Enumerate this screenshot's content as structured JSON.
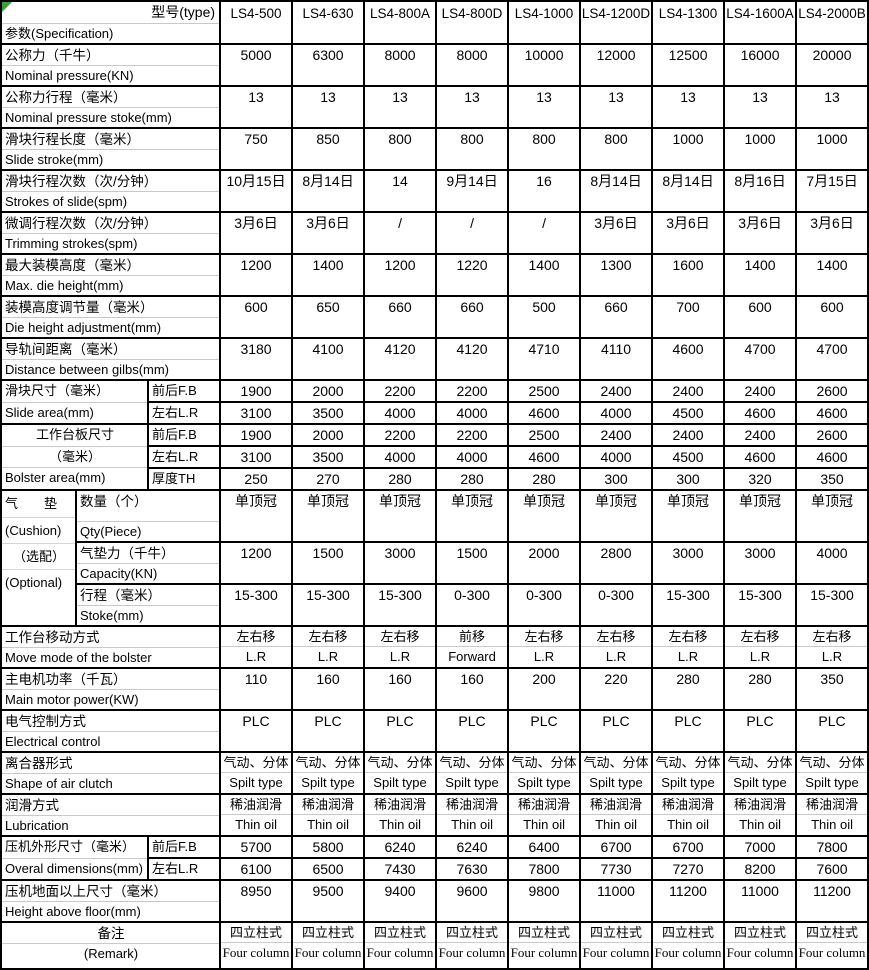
{
  "header": {
    "corner_top": "型号(type)",
    "corner_bottom": "参数(Specification)",
    "models": [
      "LS4-500",
      "LS4-630",
      "LS4-800A",
      "LS4-800D",
      "LS4-1000",
      "LS4-1200D",
      "LS4-1300",
      "LS4-1600A",
      "LS4-2000B"
    ]
  },
  "rows": [
    {
      "kind": "simple",
      "cn": "公称力（千牛）",
      "en": "Nominal pressure(KN)",
      "values": [
        "5000",
        "6300",
        "8000",
        "8000",
        "10000",
        "12000",
        "12500",
        "16000",
        "20000"
      ]
    },
    {
      "kind": "simple",
      "cn": "公称力行程（毫米）",
      "en": "Nominal pressure stoke(mm)",
      "values": [
        "13",
        "13",
        "13",
        "13",
        "13",
        "13",
        "13",
        "13",
        "13"
      ]
    },
    {
      "kind": "simple",
      "cn": "滑块行程长度（毫米）",
      "en": "Slide stroke(mm)",
      "values": [
        "750",
        "850",
        "800",
        "800",
        "800",
        "800",
        "1000",
        "1000",
        "1000"
      ]
    },
    {
      "kind": "simple",
      "cn": "滑块行程次数（次/分钟）",
      "en": "Strokes of slide(spm)",
      "values": [
        "10月15日",
        "8月14日",
        "14",
        "9月14日",
        "16",
        "8月14日",
        "8月14日",
        "8月16日",
        "7月15日"
      ]
    },
    {
      "kind": "simple",
      "cn": "微调行程次数（次/分钟）",
      "en": "Trimming strokes(spm)",
      "values": [
        "3月6日",
        "3月6日",
        "/",
        "/",
        "/",
        "3月6日",
        "3月6日",
        "3月6日",
        "3月6日"
      ]
    },
    {
      "kind": "simple",
      "cn": "最大装模高度（毫米）",
      "en": "Max. die height(mm)",
      "values": [
        "1200",
        "1400",
        "1200",
        "1220",
        "1400",
        "1300",
        "1600",
        "1400",
        "1400"
      ]
    },
    {
      "kind": "simple",
      "cn": "装模高度调节量（毫米）",
      "en": "Die height adjustment(mm)",
      "values": [
        "600",
        "650",
        "660",
        "660",
        "500",
        "660",
        "700",
        "600",
        "600"
      ]
    },
    {
      "kind": "simple",
      "cn": "导轨间距离（毫米）",
      "en": "Distance between gilbs(mm)",
      "values": [
        "3180",
        "4100",
        "4120",
        "4120",
        "4710",
        "4110",
        "4600",
        "4700",
        "4700"
      ]
    },
    {
      "kind": "group",
      "label_lines": [
        "滑块尺寸（毫米）",
        "Slide area(mm)"
      ],
      "subrows": [
        {
          "sub": "前后F.B",
          "values": [
            "1900",
            "2000",
            "2200",
            "2200",
            "2500",
            "2400",
            "2400",
            "2400",
            "2600"
          ]
        },
        {
          "sub": "左右L.R",
          "values": [
            "3100",
            "3500",
            "4000",
            "4000",
            "4600",
            "4000",
            "4500",
            "4600",
            "4600"
          ]
        }
      ]
    },
    {
      "kind": "group",
      "label_lines": [
        "工作台板尺寸",
        "（毫米）",
        "Bolster area(mm)"
      ],
      "subrows": [
        {
          "sub": "前后F.B",
          "values": [
            "1900",
            "2000",
            "2200",
            "2200",
            "2500",
            "2400",
            "2400",
            "2400",
            "2600"
          ]
        },
        {
          "sub": "左右L.R",
          "values": [
            "3100",
            "3500",
            "4000",
            "4000",
            "4600",
            "4000",
            "4500",
            "4600",
            "4600"
          ]
        },
        {
          "sub": "厚度TH",
          "values": [
            "250",
            "270",
            "280",
            "280",
            "280",
            "300",
            "300",
            "320",
            "350"
          ]
        }
      ]
    },
    {
      "kind": "cushion",
      "outer_lines": [
        "气　　垫",
        "(Cushion)",
        "（选配）",
        "(Optional)"
      ],
      "subrows": [
        {
          "cn": "数量（个）",
          "en": "Qty(Piece)",
          "values": [
            "单顶冠",
            "单顶冠",
            "单顶冠",
            "单顶冠",
            "单顶冠",
            "单顶冠",
            "单顶冠",
            "单顶冠",
            "单顶冠"
          ]
        },
        {
          "cn": "气垫力（千牛）",
          "en": "Capacity(KN)",
          "values": [
            "1200",
            "1500",
            "3000",
            "1500",
            "2000",
            "2800",
            "3000",
            "3000",
            "4000"
          ]
        },
        {
          "cn": "行程（毫米）",
          "en": "Stoke(mm)",
          "values": [
            "15-300",
            "15-300",
            "15-300",
            "0-300",
            "0-300",
            "0-300",
            "15-300",
            "15-300",
            "15-300"
          ]
        }
      ]
    },
    {
      "kind": "twoline",
      "cn": "工作台移动方式",
      "en": "Move mode of the bolster",
      "values": [
        {
          "cn": "左右移",
          "en": "L.R"
        },
        {
          "cn": "左右移",
          "en": "L.R"
        },
        {
          "cn": "左右移",
          "en": "L.R"
        },
        {
          "cn": "前移",
          "en": "Forward"
        },
        {
          "cn": "左右移",
          "en": "L.R"
        },
        {
          "cn": "左右移",
          "en": "L.R"
        },
        {
          "cn": "左右移",
          "en": "L.R"
        },
        {
          "cn": "左右移",
          "en": "L.R"
        },
        {
          "cn": "左右移",
          "en": "L.R"
        }
      ]
    },
    {
      "kind": "simple",
      "cn": "主电机功率（千瓦）",
      "en": "Main motor power(KW)",
      "values": [
        "110",
        "160",
        "160",
        "160",
        "200",
        "220",
        "280",
        "280",
        "350"
      ]
    },
    {
      "kind": "simple",
      "cn": "电气控制方式",
      "en": "Electrical control",
      "values": [
        "PLC",
        "PLC",
        "PLC",
        "PLC",
        "PLC",
        "PLC",
        "PLC",
        "PLC",
        "PLC"
      ]
    },
    {
      "kind": "twoline",
      "cn": "离合器形式",
      "en": "Shape of air clutch",
      "values": [
        {
          "cn": "气动、分体",
          "en": "Spilt type"
        },
        {
          "cn": "气动、分体",
          "en": "Spilt type"
        },
        {
          "cn": "气动、分体",
          "en": "Spilt type"
        },
        {
          "cn": "气动、分体",
          "en": "Spilt type"
        },
        {
          "cn": "气动、分体",
          "en": "Spilt type"
        },
        {
          "cn": "气动、分体",
          "en": "Spilt type"
        },
        {
          "cn": "气动、分体",
          "en": "Spilt type"
        },
        {
          "cn": "气动、分体",
          "en": "Spilt type"
        },
        {
          "cn": "气动、分体",
          "en": "Spilt type"
        }
      ]
    },
    {
      "kind": "twoline",
      "cn": "润滑方式",
      "en": "Lubrication",
      "values": [
        {
          "cn": "稀油润滑",
          "en": "Thin oil"
        },
        {
          "cn": "稀油润滑",
          "en": "Thin oil"
        },
        {
          "cn": "稀油润滑",
          "en": "Thin oil"
        },
        {
          "cn": "稀油润滑",
          "en": "Thin oil"
        },
        {
          "cn": "稀油润滑",
          "en": "Thin oil"
        },
        {
          "cn": "稀油润滑",
          "en": "Thin oil"
        },
        {
          "cn": "稀油润滑",
          "en": "Thin oil"
        },
        {
          "cn": "稀油润滑",
          "en": "Thin oil"
        },
        {
          "cn": "稀油润滑",
          "en": "Thin oil"
        }
      ]
    },
    {
      "kind": "group",
      "label_lines": [
        "压机外形尺寸（毫米）",
        "Overal dimensions(mm)"
      ],
      "subrows": [
        {
          "sub": "前后F.B",
          "values": [
            "5700",
            "5800",
            "6240",
            "6240",
            "6400",
            "6700",
            "6700",
            "7000",
            "7800"
          ]
        },
        {
          "sub": "左右L.R",
          "values": [
            "6100",
            "6500",
            "7430",
            "7630",
            "7800",
            "7730",
            "7270",
            "8200",
            "7600"
          ]
        }
      ]
    },
    {
      "kind": "simple",
      "cn": "压机地面以上尺寸（毫米）",
      "en": "Height above floor(mm)",
      "values": [
        "8950",
        "9500",
        "9400",
        "9600",
        "9800",
        "11000",
        "11200",
        "11000",
        "11200"
      ]
    },
    {
      "kind": "twoline",
      "cn": "备注",
      "en": "(Remark)",
      "values": [
        {
          "cn": "四立柱式",
          "en": "Four column"
        },
        {
          "cn": "四立柱式",
          "en": "Four column"
        },
        {
          "cn": "四立柱式",
          "en": "Four column"
        },
        {
          "cn": "四立柱式",
          "en": "Four column"
        },
        {
          "cn": "四立柱式",
          "en": "Four column"
        },
        {
          "cn": "四立柱式",
          "en": "Four column"
        },
        {
          "cn": "四立柱式",
          "en": "Four column"
        },
        {
          "cn": "四立柱式",
          "en": "Four column"
        },
        {
          "cn": "四立柱式",
          "en": "Four column"
        }
      ]
    }
  ]
}
